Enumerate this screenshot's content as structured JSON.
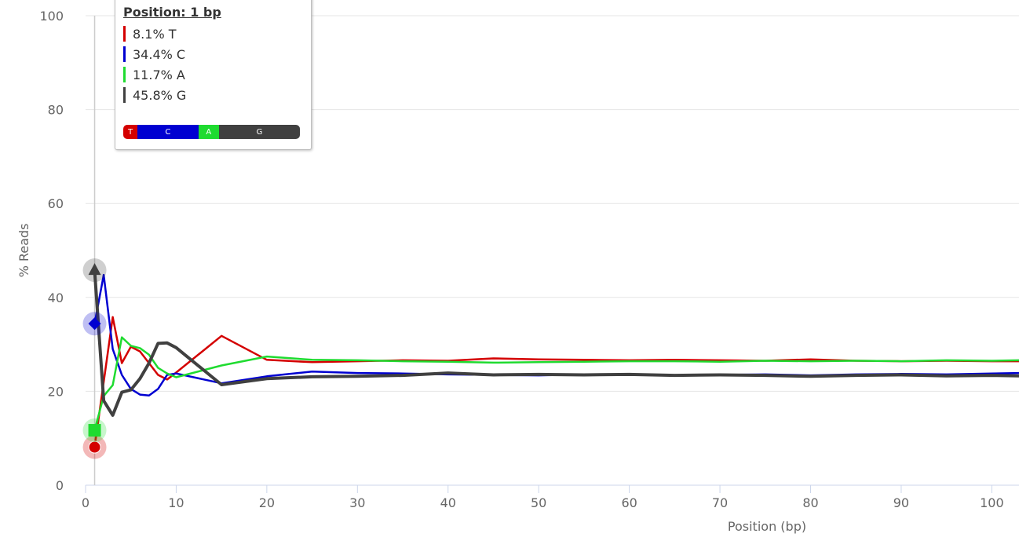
{
  "chart_data": {
    "type": "line",
    "title": "",
    "xlabel": "Position (bp)",
    "ylabel": "% Reads",
    "xlim": [
      0,
      103
    ],
    "ylim": [
      0,
      100
    ],
    "x_ticks": [
      "0",
      "10",
      "20",
      "30",
      "40",
      "50",
      "60",
      "70",
      "80",
      "90",
      "100"
    ],
    "y_ticks": [
      "0",
      "20",
      "40",
      "60",
      "80",
      "100"
    ],
    "grid": "horizontal",
    "legend": "none",
    "x": [
      1,
      2,
      3,
      4,
      5,
      6,
      7,
      8,
      9,
      10,
      15,
      20,
      25,
      30,
      35,
      40,
      45,
      50,
      55,
      60,
      65,
      70,
      75,
      80,
      85,
      90,
      95,
      100,
      103
    ],
    "series": [
      {
        "base": "T",
        "color": "#d40000",
        "values": [
          8.1,
          22,
          35.8,
          26,
          29.5,
          28.5,
          26,
          23.5,
          22.5,
          24,
          31.8,
          26.7,
          26.2,
          26.4,
          26.6,
          26.5,
          27.0,
          26.8,
          26.7,
          26.6,
          26.7,
          26.6,
          26.5,
          26.8,
          26.5,
          26.4,
          26.5,
          26.4,
          26.4
        ]
      },
      {
        "base": "C",
        "color": "#0000d1",
        "values": [
          34.4,
          44.8,
          29,
          23.5,
          20.5,
          19.3,
          19.1,
          20.5,
          23.5,
          23.8,
          21.7,
          23.2,
          24.2,
          23.9,
          23.8,
          23.6,
          23.5,
          23.4,
          23.6,
          23.5,
          23.4,
          23.5,
          23.6,
          23.4,
          23.6,
          23.7,
          23.6,
          23.8,
          23.9
        ]
      },
      {
        "base": "A",
        "color": "#1fdb30",
        "values": [
          11.7,
          19,
          21.3,
          31.5,
          29.7,
          29.2,
          27.8,
          25,
          23.8,
          23.0,
          25.5,
          27.4,
          26.7,
          26.6,
          26.4,
          26.3,
          26.1,
          26.2,
          26.3,
          26.4,
          26.4,
          26.3,
          26.5,
          26.4,
          26.5,
          26.4,
          26.6,
          26.5,
          26.6
        ]
      },
      {
        "base": "G",
        "color": "#404040",
        "values": [
          45.8,
          18,
          14.9,
          19.8,
          20.3,
          22.7,
          26,
          30.2,
          30.3,
          29.3,
          21.4,
          22.7,
          23.1,
          23.2,
          23.4,
          23.9,
          23.5,
          23.6,
          23.5,
          23.6,
          23.4,
          23.5,
          23.4,
          23.2,
          23.4,
          23.5,
          23.3,
          23.4,
          23.3
        ]
      }
    ]
  },
  "tooltip": {
    "title": "Position: 1 bp",
    "rows": [
      {
        "text": "8.1% T",
        "color": "#d40000"
      },
      {
        "text": "34.4% C",
        "color": "#0000d1"
      },
      {
        "text": "11.7% A",
        "color": "#1fdb30"
      },
      {
        "text": "45.8% G",
        "color": "#404040"
      }
    ],
    "bar": [
      {
        "label": "T",
        "share": 8.1,
        "color": "#d40000"
      },
      {
        "label": "C",
        "share": 34.4,
        "color": "#0000d1"
      },
      {
        "label": "A",
        "share": 11.7,
        "color": "#1fdb30"
      },
      {
        "label": "G",
        "share": 45.8,
        "color": "#404040"
      }
    ]
  },
  "hover_x": 1
}
